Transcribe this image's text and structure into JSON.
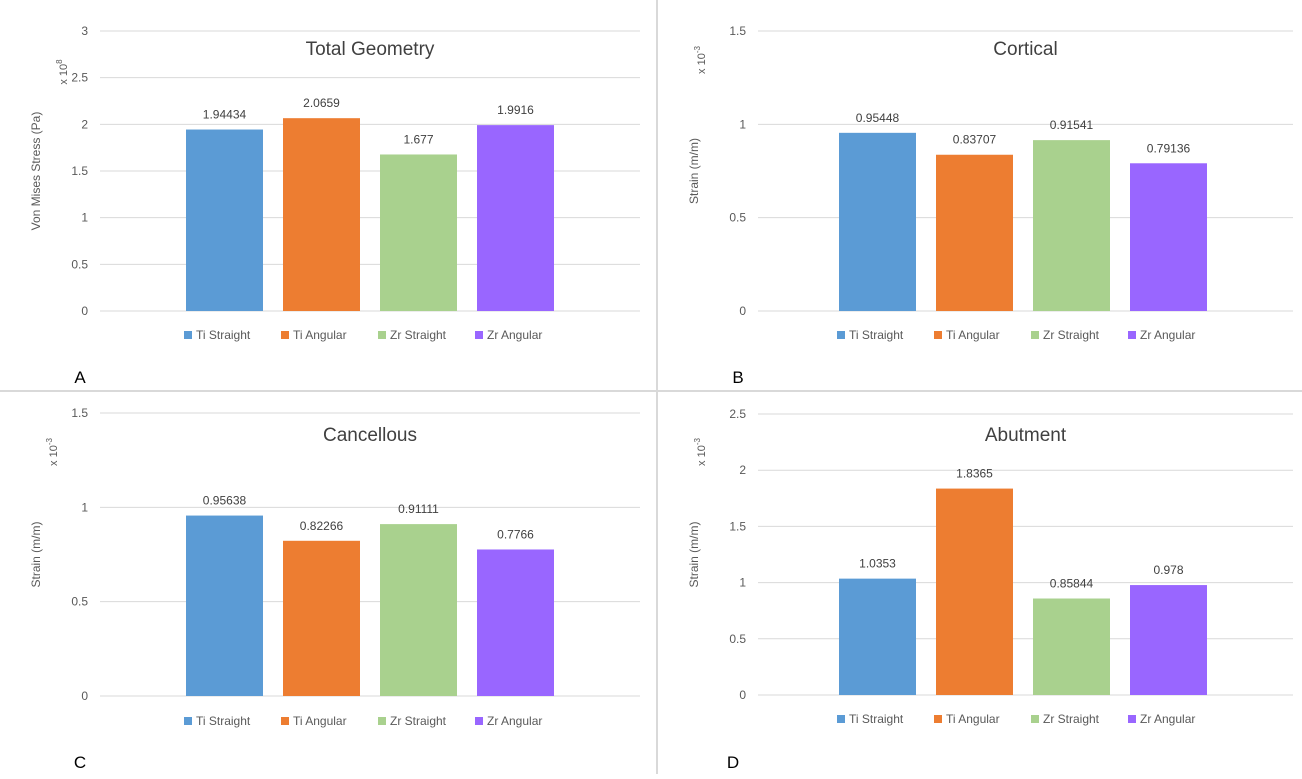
{
  "colors": {
    "series": [
      "#5B9BD5",
      "#ED7D31",
      "#A9D18E",
      "#9966FF"
    ],
    "grid": "#d9d9d9",
    "text": "#595959"
  },
  "legend": [
    "Ti Straight",
    "Ti Angular",
    "Zr Straight",
    "Zr Angular"
  ],
  "chart_data": [
    {
      "type": "bar",
      "panel": "A",
      "title": "Total Geometry",
      "ylabel": "Von Mises Stress (Pa)",
      "multiplier": "x 10",
      "multiplier_exp": "8",
      "categories": [
        "Ti Straight",
        "Ti Angular",
        "Zr Straight",
        "Zr Angular"
      ],
      "values": [
        1.94434,
        2.0659,
        1.677,
        1.9916
      ],
      "labels": [
        "1.94434",
        "2.0659",
        "1.677",
        "1.9916"
      ],
      "ylim": [
        0,
        3
      ],
      "yticks": [
        "0",
        "0.5",
        "1",
        "1.5",
        "2",
        "2.5",
        "3"
      ],
      "grid": true,
      "legend_position": "bottom"
    },
    {
      "type": "bar",
      "panel": "B",
      "title": "Cortical",
      "ylabel": "Strain (m/m)",
      "multiplier": "x 10",
      "multiplier_exp": "-3",
      "categories": [
        "Ti Straight",
        "Ti Angular",
        "Zr Straight",
        "Zr Angular"
      ],
      "values": [
        0.95448,
        0.83707,
        0.91541,
        0.79136
      ],
      "labels": [
        "0.95448",
        "0.83707",
        "0.91541",
        "0.79136"
      ],
      "ylim": [
        0,
        1.5
      ],
      "yticks": [
        "0",
        "0.5",
        "1",
        "1.5"
      ],
      "grid": true,
      "legend_position": "bottom"
    },
    {
      "type": "bar",
      "panel": "C",
      "title": "Cancellous",
      "ylabel": "Strain (m/m)",
      "multiplier": "x 10",
      "multiplier_exp": "-3",
      "categories": [
        "Ti Straight",
        "Ti Angular",
        "Zr Straight",
        "Zr Angular"
      ],
      "values": [
        0.95638,
        0.82266,
        0.91111,
        0.7766
      ],
      "labels": [
        "0.95638",
        "0.82266",
        "0.91111",
        "0.7766"
      ],
      "ylim": [
        0,
        1.5
      ],
      "yticks": [
        "0",
        "0.5",
        "1",
        "1.5"
      ],
      "grid": true,
      "legend_position": "bottom"
    },
    {
      "type": "bar",
      "panel": "D",
      "title": "Abutment",
      "ylabel": "Strain (m/m)",
      "multiplier": "x 10",
      "multiplier_exp": "-3",
      "categories": [
        "Ti Straight",
        "Ti Angular",
        "Zr Straight",
        "Zr Angular"
      ],
      "values": [
        1.0353,
        1.8365,
        0.85844,
        0.978
      ],
      "labels": [
        "1.0353",
        "1.8365",
        "0.85844",
        "0.978"
      ],
      "ylim": [
        0,
        2.5
      ],
      "yticks": [
        "0",
        "0.5",
        "1",
        "1.5",
        "2",
        "2.5"
      ],
      "grid": true,
      "legend_position": "bottom"
    }
  ]
}
